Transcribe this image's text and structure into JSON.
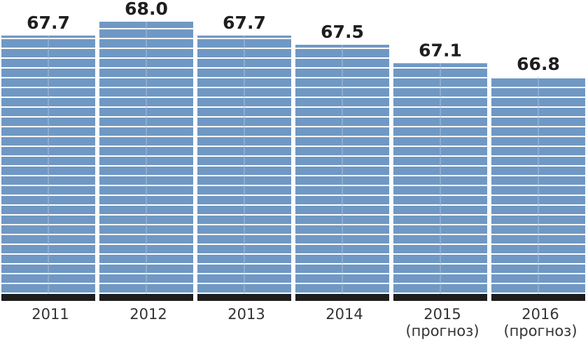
{
  "chart_data": {
    "type": "bar",
    "categories": [
      "2011",
      "2012",
      "2013",
      "2014",
      "2015\n(прогноз)",
      "2016\n(прогноз)"
    ],
    "values": [
      67.7,
      68.0,
      67.7,
      67.5,
      67.1,
      66.8
    ],
    "value_labels": [
      "67.7",
      "68.0",
      "67.7",
      "67.5",
      "67.1",
      "66.8"
    ],
    "color": "#7098c4",
    "ylim": [
      62.1,
      68.47
    ]
  }
}
